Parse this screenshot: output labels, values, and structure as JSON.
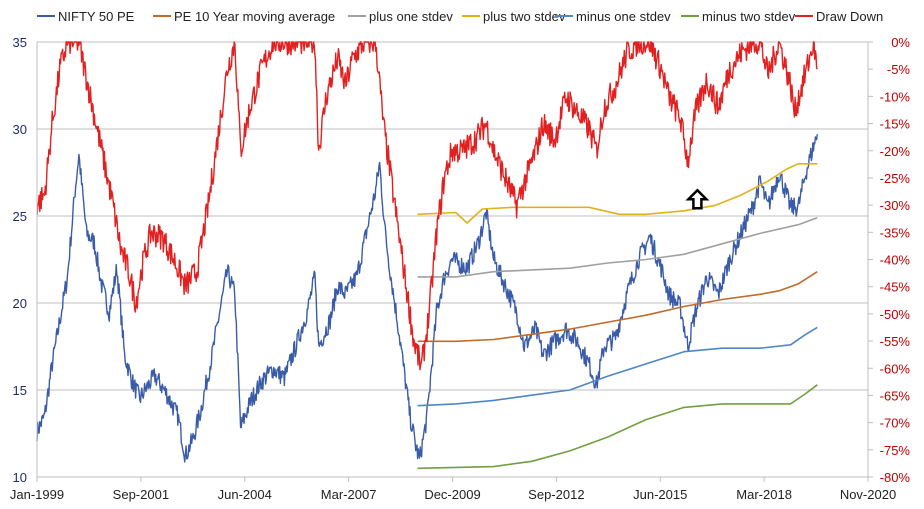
{
  "chart_data": {
    "type": "line",
    "x_start": "Jan-1999",
    "x_end": "Nov-2020",
    "x_tick_labels": [
      "Jan-1999",
      "Sep-2001",
      "Jun-2004",
      "Mar-2007",
      "Dec-2009",
      "Sep-2012",
      "Jun-2015",
      "Mar-2018",
      "Nov-2020"
    ],
    "y_left": {
      "min": 10,
      "max": 35,
      "ticks": [
        "10",
        "15",
        "20",
        "25",
        "30",
        "35"
      ]
    },
    "y_right": {
      "min": -80,
      "max": 0,
      "unit": "%",
      "ticks": [
        "0%",
        "-5%",
        "-10%",
        "-15%",
        "-20%",
        "-25%",
        "-30%",
        "-35%",
        "-40%",
        "-45%",
        "-50%",
        "-55%",
        "-60%",
        "-65%",
        "-70%",
        "-75%",
        "-80%"
      ]
    },
    "grid": "horizontal",
    "legend_position": "top",
    "series": [
      {
        "name": "NIFTY 50 PE",
        "color": "#3a5ca8",
        "axis": "left",
        "points": [
          [
            1999.0,
            12.6
          ],
          [
            1999.2,
            13.5
          ],
          [
            1999.4,
            16.5
          ],
          [
            1999.6,
            19
          ],
          [
            1999.8,
            21.5
          ],
          [
            2000.0,
            26.5
          ],
          [
            2000.1,
            28.5
          ],
          [
            2000.3,
            24
          ],
          [
            2000.5,
            23.5
          ],
          [
            2000.7,
            21
          ],
          [
            2000.9,
            19.5
          ],
          [
            2001.1,
            22
          ],
          [
            2001.3,
            17
          ],
          [
            2001.5,
            15.5
          ],
          [
            2001.7,
            14.5
          ],
          [
            2001.9,
            15.2
          ],
          [
            2002.1,
            15.8
          ],
          [
            2002.4,
            14.8
          ],
          [
            2002.7,
            13.5
          ],
          [
            2002.9,
            11.2
          ],
          [
            2003.1,
            12.2
          ],
          [
            2003.3,
            13.8
          ],
          [
            2003.6,
            17
          ],
          [
            2003.8,
            19.5
          ],
          [
            2004.0,
            21.8
          ],
          [
            2004.2,
            20.5
          ],
          [
            2004.35,
            12.8
          ],
          [
            2004.6,
            14.3
          ],
          [
            2004.9,
            15.5
          ],
          [
            2005.2,
            16.2
          ],
          [
            2005.5,
            15.7
          ],
          [
            2005.8,
            17.5
          ],
          [
            2006.1,
            19.5
          ],
          [
            2006.3,
            21.5
          ],
          [
            2006.4,
            17.5
          ],
          [
            2006.7,
            19
          ],
          [
            2006.9,
            21
          ],
          [
            2007.1,
            20.5
          ],
          [
            2007.4,
            21.5
          ],
          [
            2007.6,
            23.5
          ],
          [
            2007.9,
            26.5
          ],
          [
            2008.0,
            28
          ],
          [
            2008.15,
            24
          ],
          [
            2008.3,
            21.5
          ],
          [
            2008.5,
            18.5
          ],
          [
            2008.7,
            15.2
          ],
          [
            2008.8,
            13.5
          ],
          [
            2008.95,
            11.8
          ],
          [
            2009.05,
            11
          ],
          [
            2009.25,
            13.5
          ],
          [
            2009.5,
            19.5
          ],
          [
            2009.7,
            21.5
          ],
          [
            2009.9,
            22.5
          ],
          [
            2010.3,
            22
          ],
          [
            2010.6,
            23.5
          ],
          [
            2010.8,
            25.2
          ],
          [
            2011.0,
            22.5
          ],
          [
            2011.3,
            21
          ],
          [
            2011.6,
            19.5
          ],
          [
            2011.8,
            17.5
          ],
          [
            2012.1,
            18.5
          ],
          [
            2012.3,
            17
          ],
          [
            2012.6,
            17.8
          ],
          [
            2012.9,
            18.5
          ],
          [
            2013.2,
            17.8
          ],
          [
            2013.5,
            16.5
          ],
          [
            2013.7,
            15.3
          ],
          [
            2013.9,
            17.5
          ],
          [
            2014.2,
            18
          ],
          [
            2014.5,
            20.5
          ],
          [
            2014.8,
            22.5
          ],
          [
            2015.1,
            23.8
          ],
          [
            2015.4,
            22
          ],
          [
            2015.6,
            20.5
          ],
          [
            2015.9,
            19.8
          ],
          [
            2016.1,
            17.5
          ],
          [
            2016.3,
            19.5
          ],
          [
            2016.6,
            21.5
          ],
          [
            2016.9,
            20.5
          ],
          [
            2017.2,
            22.5
          ],
          [
            2017.5,
            24
          ],
          [
            2017.8,
            25.5
          ],
          [
            2018.0,
            27
          ],
          [
            2018.2,
            25.5
          ],
          [
            2018.5,
            27.5
          ],
          [
            2018.8,
            25.5
          ],
          [
            2019.0,
            25.5
          ],
          [
            2019.2,
            27.5
          ],
          [
            2019.4,
            29
          ],
          [
            2019.5,
            29.7
          ]
        ]
      },
      {
        "name": "PE 10 Year moving average",
        "color": "#c06b2b",
        "axis": "left",
        "points": [
          [
            2009.0,
            17.8
          ],
          [
            2010.0,
            17.8
          ],
          [
            2011.0,
            17.9
          ],
          [
            2012.0,
            18.2
          ],
          [
            2013.0,
            18.5
          ],
          [
            2014.0,
            18.9
          ],
          [
            2015.0,
            19.3
          ],
          [
            2016.0,
            19.8
          ],
          [
            2017.0,
            20.2
          ],
          [
            2018.0,
            20.5
          ],
          [
            2018.5,
            20.7
          ],
          [
            2019.0,
            21.1
          ],
          [
            2019.5,
            21.8
          ]
        ]
      },
      {
        "name": "plus one stdev",
        "color": "#a0a0a0",
        "axis": "left",
        "points": [
          [
            2009.0,
            21.5
          ],
          [
            2010.0,
            21.5
          ],
          [
            2011.0,
            21.8
          ],
          [
            2012.0,
            21.9
          ],
          [
            2013.0,
            22.0
          ],
          [
            2014.0,
            22.3
          ],
          [
            2015.0,
            22.5
          ],
          [
            2016.0,
            22.8
          ],
          [
            2017.0,
            23.4
          ],
          [
            2018.0,
            24.0
          ],
          [
            2019.0,
            24.5
          ],
          [
            2019.5,
            24.9
          ]
        ]
      },
      {
        "name": "plus two stdev",
        "color": "#e0b21a",
        "axis": "left",
        "points": [
          [
            2009.0,
            25.1
          ],
          [
            2010.0,
            25.2
          ],
          [
            2010.3,
            24.6
          ],
          [
            2010.7,
            25.4
          ],
          [
            2011.5,
            25.5
          ],
          [
            2012.5,
            25.5
          ],
          [
            2013.5,
            25.5
          ],
          [
            2014.3,
            25.1
          ],
          [
            2015.0,
            25.1
          ],
          [
            2016.0,
            25.3
          ],
          [
            2016.8,
            25.6
          ],
          [
            2017.5,
            26.2
          ],
          [
            2018.2,
            27.0
          ],
          [
            2018.7,
            27.7
          ],
          [
            2019.0,
            28.0
          ],
          [
            2019.5,
            28.0
          ]
        ]
      },
      {
        "name": "minus one stdev",
        "color": "#4f86c6",
        "axis": "left",
        "points": [
          [
            2009.0,
            14.1
          ],
          [
            2010.0,
            14.2
          ],
          [
            2011.0,
            14.4
          ],
          [
            2012.0,
            14.7
          ],
          [
            2013.0,
            15.0
          ],
          [
            2014.0,
            15.8
          ],
          [
            2015.0,
            16.5
          ],
          [
            2016.0,
            17.2
          ],
          [
            2017.0,
            17.4
          ],
          [
            2018.0,
            17.4
          ],
          [
            2018.8,
            17.6
          ],
          [
            2019.2,
            18.2
          ],
          [
            2019.5,
            18.6
          ]
        ]
      },
      {
        "name": "minus two stdev",
        "color": "#70a040",
        "axis": "left",
        "points": [
          [
            2009.0,
            10.5
          ],
          [
            2010.0,
            10.55
          ],
          [
            2011.0,
            10.6
          ],
          [
            2012.0,
            10.9
          ],
          [
            2013.0,
            11.5
          ],
          [
            2014.0,
            12.3
          ],
          [
            2015.0,
            13.3
          ],
          [
            2016.0,
            14.0
          ],
          [
            2017.0,
            14.2
          ],
          [
            2018.0,
            14.2
          ],
          [
            2018.8,
            14.2
          ],
          [
            2019.2,
            14.8
          ],
          [
            2019.5,
            15.3
          ]
        ]
      },
      {
        "name": "Draw Down",
        "color": "#e32020",
        "axis": "right",
        "points": [
          [
            1999.0,
            -30
          ],
          [
            1999.2,
            -28
          ],
          [
            1999.4,
            -15
          ],
          [
            1999.6,
            -5
          ],
          [
            1999.8,
            0
          ],
          [
            2000.1,
            0
          ],
          [
            2000.4,
            -10
          ],
          [
            2000.7,
            -20
          ],
          [
            2001.0,
            -30
          ],
          [
            2001.2,
            -38
          ],
          [
            2001.4,
            -42
          ],
          [
            2001.6,
            -48
          ],
          [
            2001.8,
            -40
          ],
          [
            2002.0,
            -35
          ],
          [
            2002.3,
            -36
          ],
          [
            2002.6,
            -40
          ],
          [
            2002.9,
            -45
          ],
          [
            2003.2,
            -42
          ],
          [
            2003.5,
            -30
          ],
          [
            2003.8,
            -15
          ],
          [
            2004.0,
            -5
          ],
          [
            2004.2,
            0
          ],
          [
            2004.35,
            -20
          ],
          [
            2004.6,
            -12
          ],
          [
            2004.9,
            -5
          ],
          [
            2005.2,
            0
          ],
          [
            2005.6,
            0
          ],
          [
            2006.0,
            0
          ],
          [
            2006.3,
            0
          ],
          [
            2006.4,
            -20
          ],
          [
            2006.6,
            -10
          ],
          [
            2006.9,
            -3
          ],
          [
            2007.1,
            -8
          ],
          [
            2007.3,
            -3
          ],
          [
            2007.6,
            0
          ],
          [
            2007.9,
            0
          ],
          [
            2008.1,
            -15
          ],
          [
            2008.3,
            -25
          ],
          [
            2008.5,
            -35
          ],
          [
            2008.7,
            -45
          ],
          [
            2008.9,
            -55
          ],
          [
            2009.1,
            -60
          ],
          [
            2009.3,
            -50
          ],
          [
            2009.5,
            -35
          ],
          [
            2009.7,
            -25
          ],
          [
            2009.9,
            -20
          ],
          [
            2010.2,
            -20
          ],
          [
            2010.5,
            -18
          ],
          [
            2010.8,
            -15
          ],
          [
            2011.0,
            -20
          ],
          [
            2011.3,
            -25
          ],
          [
            2011.6,
            -30
          ],
          [
            2011.8,
            -26
          ],
          [
            2012.1,
            -20
          ],
          [
            2012.3,
            -15
          ],
          [
            2012.6,
            -18
          ],
          [
            2012.9,
            -10
          ],
          [
            2013.2,
            -13
          ],
          [
            2013.5,
            -16
          ],
          [
            2013.7,
            -20
          ],
          [
            2013.9,
            -12
          ],
          [
            2014.2,
            -8
          ],
          [
            2014.5,
            -2
          ],
          [
            2014.8,
            0
          ],
          [
            2015.1,
            0
          ],
          [
            2015.4,
            -5
          ],
          [
            2015.6,
            -10
          ],
          [
            2015.9,
            -14
          ],
          [
            2016.1,
            -22
          ],
          [
            2016.3,
            -13
          ],
          [
            2016.6,
            -7
          ],
          [
            2016.9,
            -12
          ],
          [
            2017.2,
            -5
          ],
          [
            2017.5,
            -2
          ],
          [
            2017.8,
            0
          ],
          [
            2018.0,
            0
          ],
          [
            2018.2,
            -6
          ],
          [
            2018.5,
            0
          ],
          [
            2018.8,
            -8
          ],
          [
            2018.9,
            -13
          ],
          [
            2019.1,
            -8
          ],
          [
            2019.3,
            -3
          ],
          [
            2019.4,
            0
          ],
          [
            2019.5,
            -5
          ]
        ]
      }
    ],
    "annotations": [
      {
        "type": "arrow-up",
        "x": 2016.35,
        "y_left": 25.9
      }
    ]
  }
}
